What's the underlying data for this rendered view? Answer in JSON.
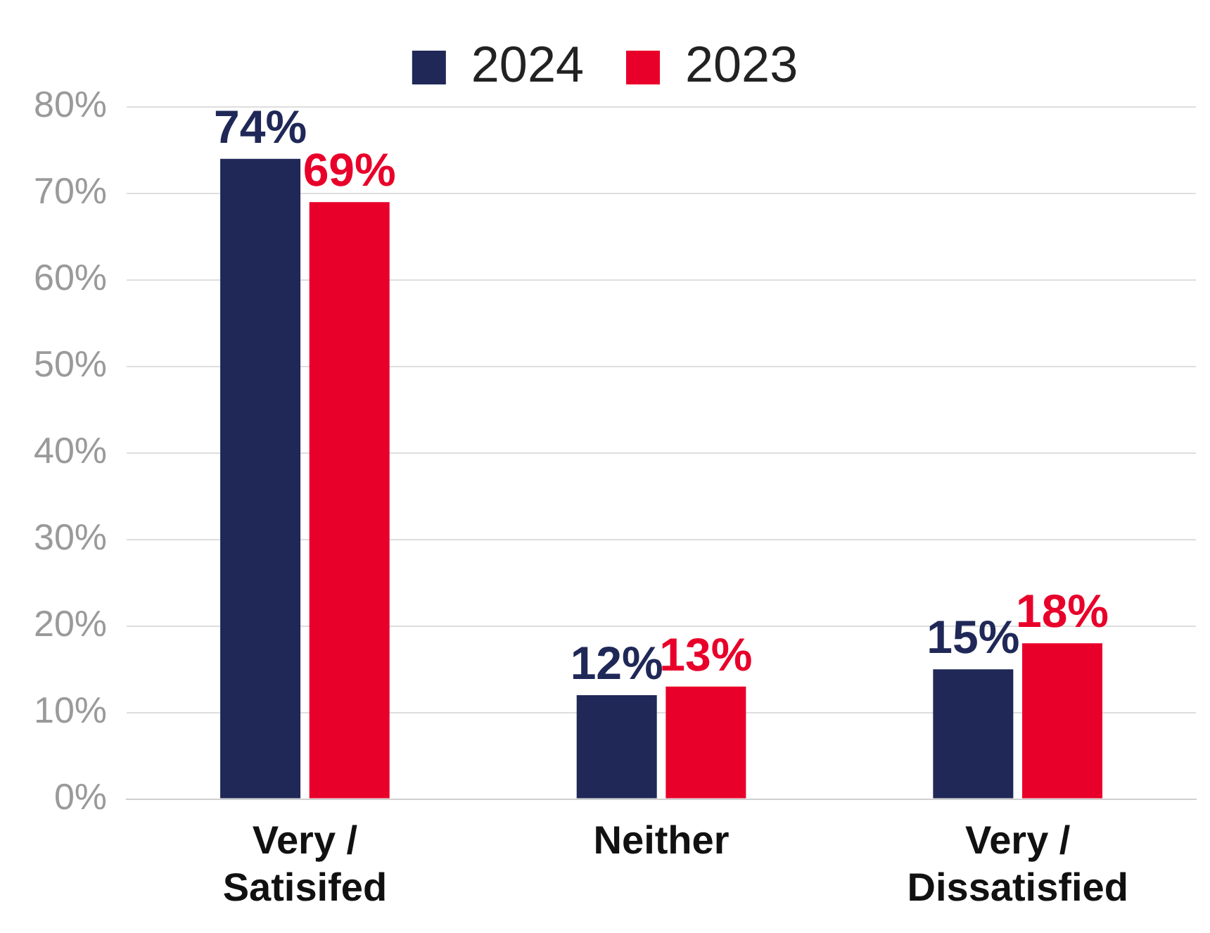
{
  "chart_data": {
    "type": "bar",
    "categories": [
      "Very / Satisifed",
      "Neither",
      "Very / Dissatisfied"
    ],
    "series": [
      {
        "name": "2024",
        "color": "#1f2857",
        "values": [
          74,
          12,
          15
        ],
        "value_labels": [
          "74%",
          "12%",
          "15%"
        ]
      },
      {
        "name": "2023",
        "color": "#e8002a",
        "values": [
          69,
          13,
          18
        ],
        "value_labels": [
          "69%",
          "13%",
          "18%"
        ]
      }
    ],
    "ylim": [
      0,
      80
    ],
    "yticks": [
      {
        "value": 0,
        "label": "0%"
      },
      {
        "value": 10,
        "label": "10%"
      },
      {
        "value": 20,
        "label": "20%"
      },
      {
        "value": 30,
        "label": "30%"
      },
      {
        "value": 40,
        "label": "40%"
      },
      {
        "value": 50,
        "label": "50%"
      },
      {
        "value": 60,
        "label": "60%"
      },
      {
        "value": 70,
        "label": "70%"
      },
      {
        "value": 80,
        "label": "80%"
      }
    ],
    "grid": "y",
    "legend": "top"
  }
}
